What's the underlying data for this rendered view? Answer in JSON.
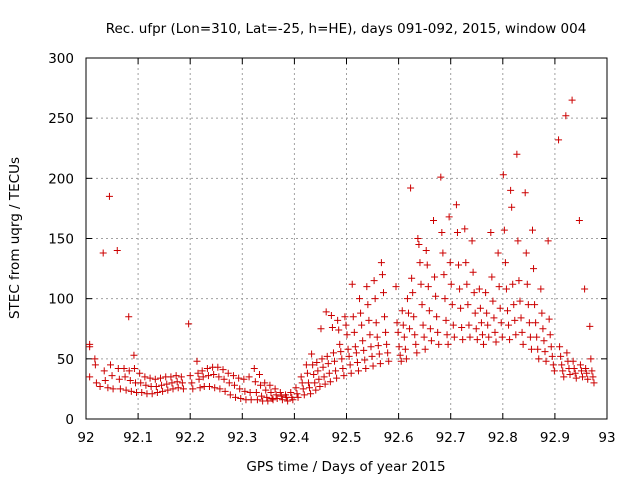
{
  "chart_data": {
    "type": "scatter",
    "title": "Rec. ufpr (Lon=310, Lat=-25, h=HE), days 091-092, 2015, window 004",
    "xlabel": "GPS time / Days of year 2015",
    "ylabel": "STEC from uqrg / TECUs",
    "xlim": [
      92,
      93
    ],
    "ylim": [
      0,
      300
    ],
    "x_ticks": [
      "92",
      "92.1",
      "92.2",
      "92.3",
      "92.4",
      "92.5",
      "92.6",
      "92.7",
      "92.8",
      "92.9",
      "93"
    ],
    "y_ticks": [
      "0",
      "50",
      "100",
      "150",
      "200",
      "250",
      "300"
    ],
    "grid": true,
    "marker": "plus",
    "color": "#cc0000",
    "points": [
      [
        92.007,
        35
      ],
      [
        92.007,
        60
      ],
      [
        92.007,
        62
      ],
      [
        92.017,
        50
      ],
      [
        92.018,
        45
      ],
      [
        92.02,
        30
      ],
      [
        92.027,
        27
      ],
      [
        92.033,
        138
      ],
      [
        92.035,
        40
      ],
      [
        92.037,
        32
      ],
      [
        92.042,
        26
      ],
      [
        92.045,
        185
      ],
      [
        92.047,
        45
      ],
      [
        92.05,
        36
      ],
      [
        92.052,
        25
      ],
      [
        92.06,
        140
      ],
      [
        92.062,
        42
      ],
      [
        92.064,
        33
      ],
      [
        92.066,
        25
      ],
      [
        92.073,
        42
      ],
      [
        92.075,
        35
      ],
      [
        92.077,
        24
      ],
      [
        92.082,
        85
      ],
      [
        92.083,
        40
      ],
      [
        92.085,
        32
      ],
      [
        92.087,
        23
      ],
      [
        92.092,
        53
      ],
      [
        92.093,
        42
      ],
      [
        92.095,
        30
      ],
      [
        92.097,
        22
      ],
      [
        92.103,
        38
      ],
      [
        92.105,
        30
      ],
      [
        92.107,
        22
      ],
      [
        92.113,
        35
      ],
      [
        92.115,
        28
      ],
      [
        92.117,
        21
      ],
      [
        92.123,
        34
      ],
      [
        92.125,
        27
      ],
      [
        92.127,
        21
      ],
      [
        92.133,
        33
      ],
      [
        92.135,
        27
      ],
      [
        92.137,
        22
      ],
      [
        92.143,
        34
      ],
      [
        92.145,
        28
      ],
      [
        92.147,
        23
      ],
      [
        92.153,
        35
      ],
      [
        92.155,
        29
      ],
      [
        92.157,
        24
      ],
      [
        92.163,
        35
      ],
      [
        92.165,
        30
      ],
      [
        92.167,
        25
      ],
      [
        92.173,
        36
      ],
      [
        92.175,
        31
      ],
      [
        92.177,
        26
      ],
      [
        92.183,
        35
      ],
      [
        92.185,
        30
      ],
      [
        92.187,
        25
      ],
      [
        92.197,
        79
      ],
      [
        92.2,
        36
      ],
      [
        92.203,
        30
      ],
      [
        92.205,
        25
      ],
      [
        92.213,
        48
      ],
      [
        92.215,
        38
      ],
      [
        92.217,
        33
      ],
      [
        92.219,
        26
      ],
      [
        92.223,
        40
      ],
      [
        92.225,
        35
      ],
      [
        92.227,
        27
      ],
      [
        92.233,
        42
      ],
      [
        92.235,
        36
      ],
      [
        92.237,
        27
      ],
      [
        92.243,
        43
      ],
      [
        92.245,
        37
      ],
      [
        92.247,
        26
      ],
      [
        92.253,
        43
      ],
      [
        92.255,
        35
      ],
      [
        92.257,
        25
      ],
      [
        92.263,
        41
      ],
      [
        92.265,
        33
      ],
      [
        92.267,
        23
      ],
      [
        92.273,
        38
      ],
      [
        92.275,
        30
      ],
      [
        92.277,
        20
      ],
      [
        92.283,
        36
      ],
      [
        92.285,
        28
      ],
      [
        92.287,
        18
      ],
      [
        92.293,
        34
      ],
      [
        92.295,
        25
      ],
      [
        92.297,
        17
      ],
      [
        92.303,
        33
      ],
      [
        92.305,
        23
      ],
      [
        92.307,
        16
      ],
      [
        92.313,
        35
      ],
      [
        92.315,
        22
      ],
      [
        92.317,
        16
      ],
      [
        92.323,
        42
      ],
      [
        92.325,
        31
      ],
      [
        92.327,
        22
      ],
      [
        92.329,
        16
      ],
      [
        92.333,
        37
      ],
      [
        92.335,
        28
      ],
      [
        92.337,
        19
      ],
      [
        92.339,
        15
      ],
      [
        92.343,
        30
      ],
      [
        92.345,
        24
      ],
      [
        92.347,
        18
      ],
      [
        92.349,
        15
      ],
      [
        92.353,
        28
      ],
      [
        92.355,
        22
      ],
      [
        92.357,
        17
      ],
      [
        92.359,
        16
      ],
      [
        92.363,
        25
      ],
      [
        92.365,
        20
      ],
      [
        92.367,
        17
      ],
      [
        92.373,
        22
      ],
      [
        92.375,
        19
      ],
      [
        92.377,
        16
      ],
      [
        92.383,
        20
      ],
      [
        92.385,
        18
      ],
      [
        92.387,
        15
      ],
      [
        92.393,
        22
      ],
      [
        92.395,
        18
      ],
      [
        92.397,
        16
      ],
      [
        92.403,
        26
      ],
      [
        92.405,
        21
      ],
      [
        92.407,
        18
      ],
      [
        92.413,
        35
      ],
      [
        92.415,
        30
      ],
      [
        92.417,
        25
      ],
      [
        92.419,
        20
      ],
      [
        92.423,
        45
      ],
      [
        92.425,
        38
      ],
      [
        92.427,
        30
      ],
      [
        92.429,
        26
      ],
      [
        92.431,
        21
      ],
      [
        92.433,
        54
      ],
      [
        92.435,
        45
      ],
      [
        92.437,
        37
      ],
      [
        92.439,
        30
      ],
      [
        92.441,
        24
      ],
      [
        92.443,
        47
      ],
      [
        92.445,
        40
      ],
      [
        92.447,
        33
      ],
      [
        92.449,
        27
      ],
      [
        92.451,
        75
      ],
      [
        92.453,
        50
      ],
      [
        92.455,
        43
      ],
      [
        92.457,
        35
      ],
      [
        92.459,
        29
      ],
      [
        92.461,
        89
      ],
      [
        92.463,
        52
      ],
      [
        92.465,
        46
      ],
      [
        92.467,
        38
      ],
      [
        92.469,
        31
      ],
      [
        92.471,
        86
      ],
      [
        92.473,
        76
      ],
      [
        92.475,
        55
      ],
      [
        92.477,
        48
      ],
      [
        92.479,
        40
      ],
      [
        92.481,
        34
      ],
      [
        92.483,
        82
      ],
      [
        92.485,
        74
      ],
      [
        92.487,
        62
      ],
      [
        92.489,
        56
      ],
      [
        92.491,
        50
      ],
      [
        92.493,
        42
      ],
      [
        92.495,
        36
      ],
      [
        92.497,
        85
      ],
      [
        92.499,
        78
      ],
      [
        92.501,
        70
      ],
      [
        92.503,
        58
      ],
      [
        92.505,
        52
      ],
      [
        92.507,
        45
      ],
      [
        92.509,
        38
      ],
      [
        92.511,
        112
      ],
      [
        92.513,
        85
      ],
      [
        92.515,
        72
      ],
      [
        92.517,
        60
      ],
      [
        92.519,
        55
      ],
      [
        92.521,
        47
      ],
      [
        92.523,
        40
      ],
      [
        92.525,
        100
      ],
      [
        92.527,
        88
      ],
      [
        92.529,
        78
      ],
      [
        92.531,
        65
      ],
      [
        92.533,
        57
      ],
      [
        92.535,
        49
      ],
      [
        92.537,
        42
      ],
      [
        92.539,
        110
      ],
      [
        92.541,
        95
      ],
      [
        92.543,
        82
      ],
      [
        92.545,
        70
      ],
      [
        92.547,
        60
      ],
      [
        92.549,
        52
      ],
      [
        92.551,
        44
      ],
      [
        92.553,
        115
      ],
      [
        92.555,
        100
      ],
      [
        92.557,
        80
      ],
      [
        92.559,
        68
      ],
      [
        92.561,
        61
      ],
      [
        92.563,
        54
      ],
      [
        92.565,
        46
      ],
      [
        92.567,
        130
      ],
      [
        92.569,
        120
      ],
      [
        92.571,
        105
      ],
      [
        92.573,
        85
      ],
      [
        92.575,
        72
      ],
      [
        92.577,
        62
      ],
      [
        92.579,
        55
      ],
      [
        92.581,
        48
      ],
      [
        92.595,
        110
      ],
      [
        92.597,
        80
      ],
      [
        92.599,
        72
      ],
      [
        92.601,
        60
      ],
      [
        92.603,
        53
      ],
      [
        92.605,
        48
      ],
      [
        92.607,
        90
      ],
      [
        92.609,
        78
      ],
      [
        92.611,
        68
      ],
      [
        92.613,
        58
      ],
      [
        92.615,
        50
      ],
      [
        92.617,
        100
      ],
      [
        92.619,
        88
      ],
      [
        92.621,
        75
      ],
      [
        92.623,
        192
      ],
      [
        92.625,
        117
      ],
      [
        92.627,
        105
      ],
      [
        92.629,
        85
      ],
      [
        92.631,
        70
      ],
      [
        92.633,
        62
      ],
      [
        92.635,
        55
      ],
      [
        92.637,
        150
      ],
      [
        92.639,
        145
      ],
      [
        92.641,
        130
      ],
      [
        92.643,
        112
      ],
      [
        92.645,
        95
      ],
      [
        92.647,
        78
      ],
      [
        92.649,
        68
      ],
      [
        92.651,
        58
      ],
      [
        92.653,
        140
      ],
      [
        92.655,
        128
      ],
      [
        92.657,
        110
      ],
      [
        92.659,
        90
      ],
      [
        92.661,
        75
      ],
      [
        92.663,
        65
      ],
      [
        92.667,
        165
      ],
      [
        92.669,
        118
      ],
      [
        92.671,
        102
      ],
      [
        92.673,
        85
      ],
      [
        92.675,
        72
      ],
      [
        92.677,
        62
      ],
      [
        92.681,
        201
      ],
      [
        92.683,
        155
      ],
      [
        92.685,
        138
      ],
      [
        92.687,
        120
      ],
      [
        92.689,
        100
      ],
      [
        92.691,
        82
      ],
      [
        92.693,
        70
      ],
      [
        92.695,
        62
      ],
      [
        92.697,
        168
      ],
      [
        92.699,
        130
      ],
      [
        92.701,
        112
      ],
      [
        92.703,
        95
      ],
      [
        92.705,
        78
      ],
      [
        92.707,
        68
      ],
      [
        92.711,
        178
      ],
      [
        92.713,
        155
      ],
      [
        92.715,
        128
      ],
      [
        92.717,
        108
      ],
      [
        92.719,
        92
      ],
      [
        92.721,
        76
      ],
      [
        92.723,
        66
      ],
      [
        92.727,
        158
      ],
      [
        92.729,
        130
      ],
      [
        92.731,
        112
      ],
      [
        92.733,
        95
      ],
      [
        92.735,
        78
      ],
      [
        92.737,
        68
      ],
      [
        92.741,
        148
      ],
      [
        92.743,
        122
      ],
      [
        92.745,
        105
      ],
      [
        92.747,
        88
      ],
      [
        92.749,
        75
      ],
      [
        92.751,
        66
      ],
      [
        92.755,
        108
      ],
      [
        92.757,
        92
      ],
      [
        92.759,
        80
      ],
      [
        92.761,
        70
      ],
      [
        92.763,
        62
      ],
      [
        92.767,
        105
      ],
      [
        92.769,
        88
      ],
      [
        92.771,
        78
      ],
      [
        92.773,
        68
      ],
      [
        92.777,
        155
      ],
      [
        92.779,
        118
      ],
      [
        92.781,
        98
      ],
      [
        92.783,
        84
      ],
      [
        92.785,
        72
      ],
      [
        92.787,
        64
      ],
      [
        92.791,
        138
      ],
      [
        92.793,
        110
      ],
      [
        92.795,
        92
      ],
      [
        92.797,
        80
      ],
      [
        92.799,
        68
      ],
      [
        92.801,
        203
      ],
      [
        92.803,
        157
      ],
      [
        92.805,
        130
      ],
      [
        92.807,
        108
      ],
      [
        92.809,
        90
      ],
      [
        92.811,
        78
      ],
      [
        92.813,
        66
      ],
      [
        92.815,
        190
      ],
      [
        92.817,
        176
      ],
      [
        92.819,
        112
      ],
      [
        92.821,
        95
      ],
      [
        92.823,
        82
      ],
      [
        92.825,
        70
      ],
      [
        92.827,
        220
      ],
      [
        92.829,
        148
      ],
      [
        92.831,
        115
      ],
      [
        92.833,
        98
      ],
      [
        92.835,
        84
      ],
      [
        92.837,
        72
      ],
      [
        92.839,
        62
      ],
      [
        92.843,
        188
      ],
      [
        92.845,
        138
      ],
      [
        92.847,
        112
      ],
      [
        92.849,
        95
      ],
      [
        92.851,
        80
      ],
      [
        92.853,
        68
      ],
      [
        92.855,
        58
      ],
      [
        92.857,
        157
      ],
      [
        92.859,
        125
      ],
      [
        92.861,
        95
      ],
      [
        92.863,
        80
      ],
      [
        92.865,
        68
      ],
      [
        92.867,
        58
      ],
      [
        92.869,
        50
      ],
      [
        92.873,
        108
      ],
      [
        92.875,
        88
      ],
      [
        92.877,
        75
      ],
      [
        92.879,
        65
      ],
      [
        92.881,
        56
      ],
      [
        92.883,
        48
      ],
      [
        92.887,
        148
      ],
      [
        92.889,
        83
      ],
      [
        92.891,
        70
      ],
      [
        92.893,
        60
      ],
      [
        92.895,
        52
      ],
      [
        92.897,
        45
      ],
      [
        92.899,
        40
      ],
      [
        92.907,
        232
      ],
      [
        92.909,
        60
      ],
      [
        92.911,
        52
      ],
      [
        92.913,
        45
      ],
      [
        92.915,
        40
      ],
      [
        92.917,
        35
      ],
      [
        92.921,
        252
      ],
      [
        92.923,
        55
      ],
      [
        92.925,
        48
      ],
      [
        92.927,
        42
      ],
      [
        92.929,
        37
      ],
      [
        92.933,
        265
      ],
      [
        92.935,
        48
      ],
      [
        92.937,
        42
      ],
      [
        92.939,
        38
      ],
      [
        92.941,
        34
      ],
      [
        92.947,
        165
      ],
      [
        92.949,
        45
      ],
      [
        92.951,
        40
      ],
      [
        92.953,
        35
      ],
      [
        92.957,
        108
      ],
      [
        92.959,
        42
      ],
      [
        92.961,
        38
      ],
      [
        92.963,
        33
      ],
      [
        92.967,
        77
      ],
      [
        92.969,
        50
      ],
      [
        92.971,
        40
      ],
      [
        92.973,
        35
      ],
      [
        92.975,
        30
      ]
    ]
  }
}
